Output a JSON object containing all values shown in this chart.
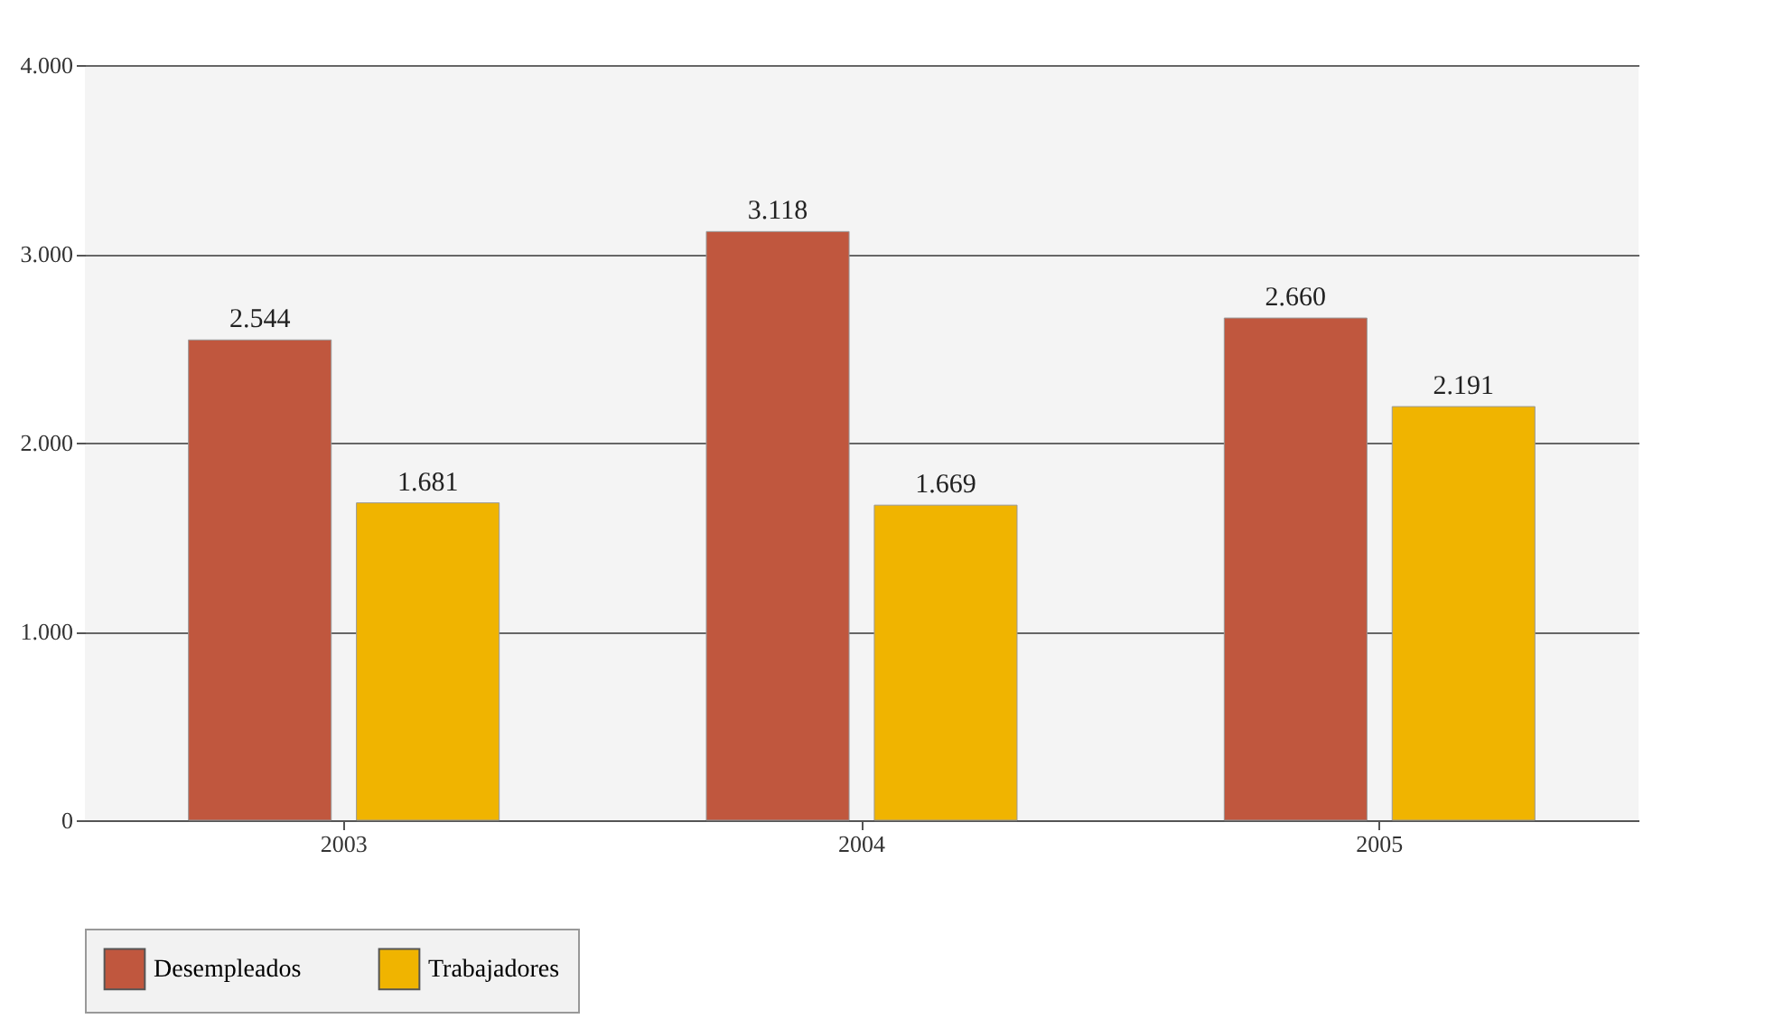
{
  "chart_data": {
    "type": "bar",
    "categories": [
      "2003",
      "2004",
      "2005"
    ],
    "series": [
      {
        "name": "Desempleados",
        "color": "#c0573e",
        "values": [
          2544,
          3118,
          2660
        ],
        "value_labels": [
          "2.544",
          "3.118",
          "2.660"
        ]
      },
      {
        "name": "Trabajadores",
        "color": "#f0b400",
        "values": [
          1681,
          1669,
          2191
        ],
        "value_labels": [
          "1.681",
          "1.669",
          "2.191"
        ]
      }
    ],
    "ylim": [
      0,
      4000
    ],
    "yticks": [
      {
        "value": 0,
        "label": "0"
      },
      {
        "value": 1000,
        "label": "1.000"
      },
      {
        "value": 2000,
        "label": "2.000"
      },
      {
        "value": 3000,
        "label": "3.000"
      },
      {
        "value": 4000,
        "label": "4.000"
      }
    ],
    "grid": "y",
    "legend": "bottom"
  }
}
